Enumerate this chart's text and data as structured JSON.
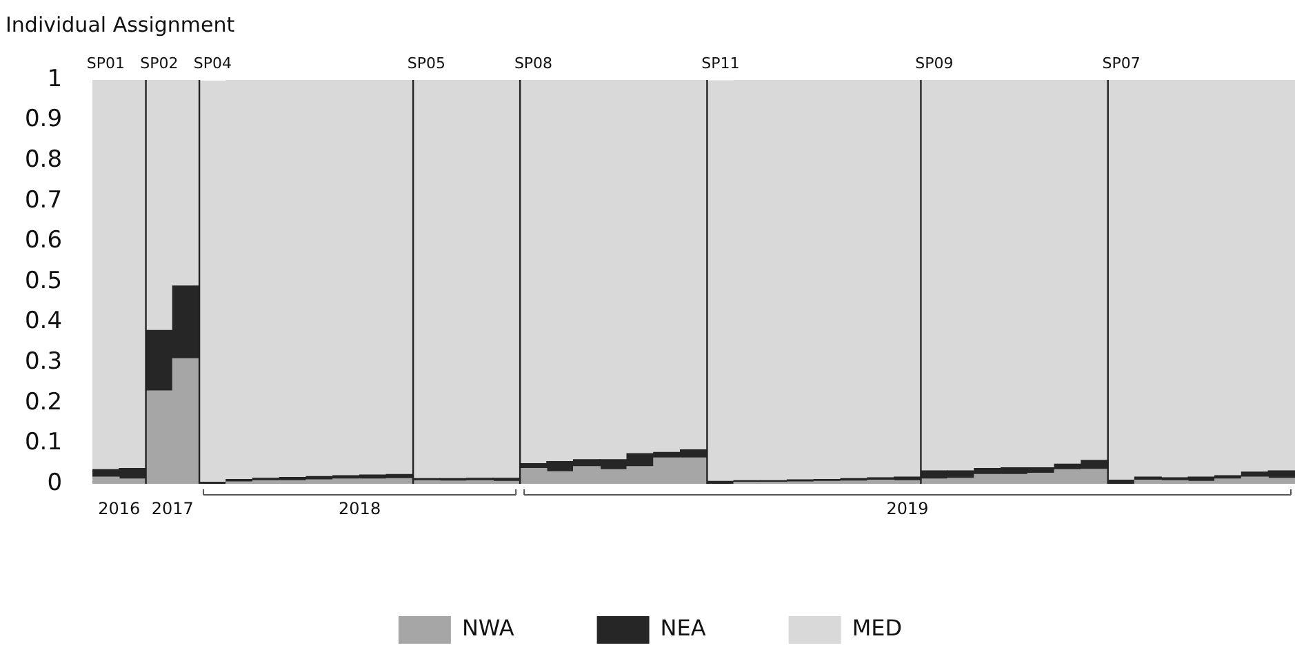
{
  "chart_data": {
    "type": "bar",
    "title": "Individual Assignment",
    "stacked": true,
    "categories": [
      "SP01",
      null,
      "SP02",
      null,
      "SP04",
      null,
      null,
      null,
      null,
      null,
      null,
      null,
      "SP05",
      null,
      null,
      null,
      "SP08",
      null,
      null,
      null,
      null,
      null,
      null,
      "SP11",
      null,
      null,
      null,
      null,
      null,
      null,
      null,
      "SP09",
      null,
      null,
      null,
      null,
      null,
      null,
      "SP07",
      null,
      null,
      null,
      null,
      null,
      null
    ],
    "series": [
      {
        "name": "NWA",
        "color": "#a6a6a6",
        "values": [
          0.017,
          0.012,
          0.23,
          0.31,
          null,
          0.005,
          0.008,
          0.008,
          0.01,
          0.012,
          0.012,
          0.013,
          0.008,
          0.007,
          0.008,
          0.006,
          0.038,
          0.03,
          0.043,
          0.035,
          0.043,
          0.064,
          0.064,
          null,
          0.004,
          0.004,
          0.005,
          0.006,
          0.007,
          0.009,
          0.008,
          0.012,
          0.014,
          0.023,
          0.023,
          0.026,
          0.035,
          0.036,
          null,
          0.009,
          0.008,
          0.006,
          0.012,
          0.017,
          0.014
        ]
      },
      {
        "name": "NEA",
        "color": "#262626",
        "values": [
          0.018,
          0.026,
          0.15,
          0.18,
          0.004,
          0.006,
          0.006,
          0.008,
          0.008,
          0.008,
          0.01,
          0.01,
          0.005,
          0.006,
          0.006,
          0.008,
          0.012,
          0.025,
          0.017,
          0.025,
          0.032,
          0.014,
          0.02,
          0.006,
          0.004,
          0.004,
          0.005,
          0.005,
          0.006,
          0.006,
          0.009,
          0.02,
          0.018,
          0.015,
          0.017,
          0.014,
          0.014,
          0.022,
          0.009,
          0.008,
          0.007,
          0.011,
          0.008,
          0.012,
          0.018
        ]
      },
      {
        "name": "MED",
        "color": "#d9d9d9",
        "values": [
          0.965,
          0.962,
          0.62,
          0.51,
          0.993,
          0.989,
          0.986,
          0.984,
          0.982,
          0.98,
          0.978,
          0.977,
          0.987,
          0.987,
          0.986,
          0.986,
          0.95,
          0.945,
          0.94,
          0.94,
          0.925,
          0.922,
          0.916,
          0.992,
          0.992,
          0.992,
          0.99,
          0.989,
          0.987,
          0.985,
          0.983,
          0.968,
          0.968,
          0.962,
          0.96,
          0.96,
          0.951,
          0.942,
          0.99,
          0.983,
          0.985,
          0.983,
          0.98,
          0.971,
          0.968
        ]
      }
    ],
    "ylim": [
      0,
      1
    ],
    "yticks": [
      0,
      0.1,
      0.2,
      0.3,
      0.4,
      0.5,
      0.6,
      0.7,
      0.8,
      0.9,
      1
    ],
    "annotations": [
      "2016",
      "2017",
      "2018",
      "2019"
    ],
    "grid": false,
    "legend": "bottom"
  }
}
